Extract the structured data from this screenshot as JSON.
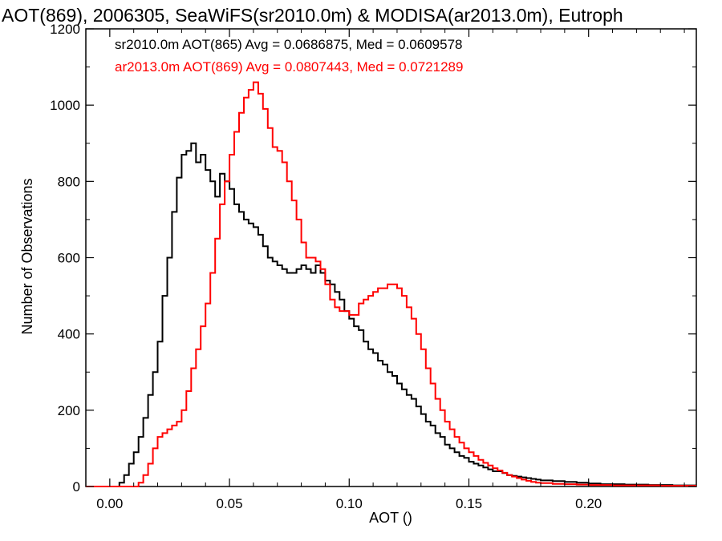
{
  "chart_data": {
    "type": "line",
    "title": "AOT(869), 2006305, SeaWiFS(sr2010.0m) & MODISA(ar2013.0m), Eutroph",
    "xlabel": "AOT ()",
    "ylabel": "Number of Observations",
    "xlim": [
      -0.01,
      0.245
    ],
    "ylim": [
      0,
      1200
    ],
    "x_ticks": [
      0.0,
      0.05,
      0.1,
      0.15,
      0.2
    ],
    "x_tick_labels": [
      "0.00",
      "0.05",
      "0.10",
      "0.15",
      "0.20"
    ],
    "y_ticks": [
      0,
      200,
      400,
      600,
      800,
      1000,
      1200
    ],
    "y_tick_labels": [
      "0",
      "200",
      "400",
      "600",
      "800",
      "1000",
      "1200"
    ],
    "grid": false,
    "legend_placement": "top-left",
    "legend": [
      {
        "text": "sr2010.0m AOT(865) Avg = 0.0686875, Med = 0.0609578",
        "color": "#000000"
      },
      {
        "text": "ar2013.0m AOT(869) Avg = 0.0807443, Med = 0.0721289",
        "color": "#ff0000"
      }
    ],
    "series": [
      {
        "color": "#000000",
        "points": [
          [
            -0.01,
            0
          ],
          [
            0.0,
            0
          ],
          [
            0.004,
            10
          ],
          [
            0.006,
            30
          ],
          [
            0.008,
            60
          ],
          [
            0.01,
            90
          ],
          [
            0.012,
            130
          ],
          [
            0.014,
            180
          ],
          [
            0.016,
            240
          ],
          [
            0.018,
            300
          ],
          [
            0.02,
            380
          ],
          [
            0.022,
            500
          ],
          [
            0.024,
            600
          ],
          [
            0.026,
            720
          ],
          [
            0.028,
            810
          ],
          [
            0.03,
            870
          ],
          [
            0.032,
            880
          ],
          [
            0.034,
            900
          ],
          [
            0.036,
            850
          ],
          [
            0.038,
            870
          ],
          [
            0.04,
            830
          ],
          [
            0.042,
            800
          ],
          [
            0.044,
            760
          ],
          [
            0.046,
            820
          ],
          [
            0.048,
            800
          ],
          [
            0.05,
            780
          ],
          [
            0.052,
            740
          ],
          [
            0.054,
            720
          ],
          [
            0.056,
            700
          ],
          [
            0.058,
            690
          ],
          [
            0.06,
            680
          ],
          [
            0.062,
            660
          ],
          [
            0.064,
            630
          ],
          [
            0.066,
            600
          ],
          [
            0.068,
            590
          ],
          [
            0.07,
            580
          ],
          [
            0.072,
            570
          ],
          [
            0.074,
            560
          ],
          [
            0.076,
            560
          ],
          [
            0.078,
            570
          ],
          [
            0.08,
            580
          ],
          [
            0.082,
            570
          ],
          [
            0.084,
            560
          ],
          [
            0.086,
            580
          ],
          [
            0.088,
            560
          ],
          [
            0.09,
            540
          ],
          [
            0.092,
            530
          ],
          [
            0.094,
            510
          ],
          [
            0.096,
            490
          ],
          [
            0.098,
            460
          ],
          [
            0.1,
            440
          ],
          [
            0.102,
            420
          ],
          [
            0.104,
            410
          ],
          [
            0.106,
            380
          ],
          [
            0.108,
            360
          ],
          [
            0.11,
            350
          ],
          [
            0.112,
            330
          ],
          [
            0.114,
            320
          ],
          [
            0.116,
            300
          ],
          [
            0.118,
            290
          ],
          [
            0.12,
            270
          ],
          [
            0.122,
            255
          ],
          [
            0.124,
            240
          ],
          [
            0.126,
            230
          ],
          [
            0.128,
            210
          ],
          [
            0.13,
            190
          ],
          [
            0.132,
            170
          ],
          [
            0.134,
            160
          ],
          [
            0.136,
            140
          ],
          [
            0.138,
            130
          ],
          [
            0.14,
            110
          ],
          [
            0.142,
            100
          ],
          [
            0.144,
            90
          ],
          [
            0.146,
            80
          ],
          [
            0.148,
            75
          ],
          [
            0.15,
            65
          ],
          [
            0.152,
            60
          ],
          [
            0.154,
            55
          ],
          [
            0.156,
            50
          ],
          [
            0.158,
            45
          ],
          [
            0.16,
            40
          ],
          [
            0.162,
            40
          ],
          [
            0.164,
            35
          ],
          [
            0.166,
            30
          ],
          [
            0.168,
            28
          ],
          [
            0.17,
            26
          ],
          [
            0.172,
            24
          ],
          [
            0.174,
            22
          ],
          [
            0.176,
            20
          ],
          [
            0.178,
            18
          ],
          [
            0.18,
            16
          ],
          [
            0.185,
            14
          ],
          [
            0.19,
            12
          ],
          [
            0.195,
            10
          ],
          [
            0.2,
            8
          ],
          [
            0.205,
            6
          ],
          [
            0.21,
            6
          ],
          [
            0.215,
            5
          ],
          [
            0.22,
            5
          ],
          [
            0.225,
            4
          ],
          [
            0.23,
            4
          ],
          [
            0.235,
            3
          ],
          [
            0.24,
            3
          ],
          [
            0.245,
            3
          ]
        ]
      },
      {
        "color": "#ff0000",
        "points": [
          [
            -0.01,
            0
          ],
          [
            0.01,
            0
          ],
          [
            0.012,
            10
          ],
          [
            0.014,
            30
          ],
          [
            0.016,
            60
          ],
          [
            0.018,
            100
          ],
          [
            0.02,
            130
          ],
          [
            0.022,
            140
          ],
          [
            0.024,
            150
          ],
          [
            0.026,
            160
          ],
          [
            0.028,
            170
          ],
          [
            0.03,
            200
          ],
          [
            0.032,
            250
          ],
          [
            0.034,
            310
          ],
          [
            0.036,
            360
          ],
          [
            0.038,
            420
          ],
          [
            0.04,
            480
          ],
          [
            0.042,
            560
          ],
          [
            0.044,
            650
          ],
          [
            0.046,
            740
          ],
          [
            0.048,
            800
          ],
          [
            0.05,
            870
          ],
          [
            0.052,
            930
          ],
          [
            0.054,
            980
          ],
          [
            0.056,
            1020
          ],
          [
            0.058,
            1040
          ],
          [
            0.06,
            1060
          ],
          [
            0.062,
            1030
          ],
          [
            0.064,
            990
          ],
          [
            0.066,
            940
          ],
          [
            0.068,
            890
          ],
          [
            0.07,
            880
          ],
          [
            0.072,
            850
          ],
          [
            0.074,
            800
          ],
          [
            0.076,
            750
          ],
          [
            0.078,
            700
          ],
          [
            0.08,
            640
          ],
          [
            0.082,
            600
          ],
          [
            0.084,
            600
          ],
          [
            0.086,
            590
          ],
          [
            0.088,
            570
          ],
          [
            0.09,
            530
          ],
          [
            0.092,
            490
          ],
          [
            0.094,
            470
          ],
          [
            0.096,
            460
          ],
          [
            0.098,
            460
          ],
          [
            0.1,
            450
          ],
          [
            0.102,
            450
          ],
          [
            0.104,
            480
          ],
          [
            0.106,
            490
          ],
          [
            0.108,
            500
          ],
          [
            0.11,
            510
          ],
          [
            0.112,
            520
          ],
          [
            0.114,
            520
          ],
          [
            0.116,
            530
          ],
          [
            0.118,
            530
          ],
          [
            0.12,
            520
          ],
          [
            0.122,
            500
          ],
          [
            0.124,
            470
          ],
          [
            0.126,
            440
          ],
          [
            0.128,
            400
          ],
          [
            0.13,
            360
          ],
          [
            0.132,
            310
          ],
          [
            0.134,
            270
          ],
          [
            0.136,
            230
          ],
          [
            0.138,
            200
          ],
          [
            0.14,
            170
          ],
          [
            0.142,
            150
          ],
          [
            0.144,
            130
          ],
          [
            0.146,
            115
          ],
          [
            0.148,
            100
          ],
          [
            0.15,
            90
          ],
          [
            0.152,
            80
          ],
          [
            0.154,
            70
          ],
          [
            0.156,
            62
          ],
          [
            0.158,
            55
          ],
          [
            0.16,
            48
          ],
          [
            0.162,
            42
          ],
          [
            0.164,
            36
          ],
          [
            0.166,
            30
          ],
          [
            0.168,
            26
          ],
          [
            0.17,
            22
          ],
          [
            0.172,
            18
          ],
          [
            0.174,
            15
          ],
          [
            0.176,
            12
          ],
          [
            0.178,
            10
          ],
          [
            0.18,
            9
          ],
          [
            0.185,
            7
          ],
          [
            0.19,
            6
          ],
          [
            0.195,
            5
          ],
          [
            0.2,
            4
          ],
          [
            0.21,
            3
          ],
          [
            0.22,
            3
          ],
          [
            0.23,
            2
          ],
          [
            0.24,
            2
          ],
          [
            0.245,
            2
          ]
        ]
      }
    ]
  }
}
